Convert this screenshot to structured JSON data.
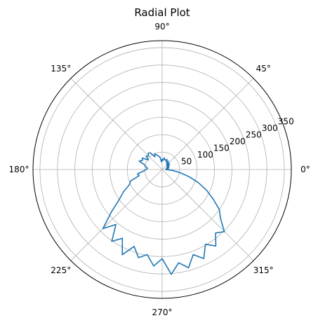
{
  "chart_data": {
    "type": "line",
    "projection": "polar",
    "title": "Radial Plot",
    "theta_unit": "degrees",
    "angular_ticks": [
      0,
      45,
      90,
      135,
      180,
      225,
      270,
      315
    ],
    "angular_tick_labels": [
      "0°",
      "45°",
      "90°",
      "135°",
      "180°",
      "225°",
      "270°",
      "315°"
    ],
    "radial_ticks": [
      50,
      100,
      150,
      200,
      250,
      300,
      350
    ],
    "radial_tick_labels": [
      "50",
      "100",
      "150",
      "200",
      "250",
      "300",
      "350"
    ],
    "rlim": [
      0,
      370
    ],
    "radial_label_angle": 22.5,
    "grid": true,
    "series": [
      {
        "color": "#1f77b4",
        "theta": [
          0,
          5,
          10,
          15,
          20,
          25,
          30,
          35,
          40,
          45,
          50,
          55,
          60,
          65,
          70,
          75,
          80,
          85,
          90,
          95,
          100,
          105,
          110,
          115,
          120,
          125,
          130,
          135,
          140,
          145,
          150,
          155,
          160,
          165,
          170,
          175,
          180,
          185,
          190,
          195,
          200,
          205,
          210,
          215,
          220,
          225,
          230,
          235,
          240,
          245,
          250,
          255,
          260,
          265,
          270,
          275,
          280,
          285,
          290,
          295,
          300,
          305,
          310,
          315,
          320,
          325,
          330,
          335,
          340,
          345,
          350,
          355
        ],
        "r": [
          10,
          18,
          12,
          20,
          14,
          22,
          16,
          26,
          18,
          28,
          20,
          30,
          24,
          32,
          28,
          30,
          34,
          26,
          30,
          22,
          36,
          40,
          44,
          50,
          42,
          58,
          62,
          55,
          60,
          48,
          66,
          62,
          70,
          52,
          48,
          42,
          46,
          54,
          72,
          68,
          96,
          104,
          128,
          150,
          190,
          240,
          206,
          252,
          228,
          270,
          235,
          262,
          248,
          278,
          256,
          302,
          272,
          292,
          260,
          282,
          248,
          268,
          238,
          252,
          218,
          200,
          168,
          140,
          110,
          80,
          52,
          30
        ]
      }
    ]
  }
}
